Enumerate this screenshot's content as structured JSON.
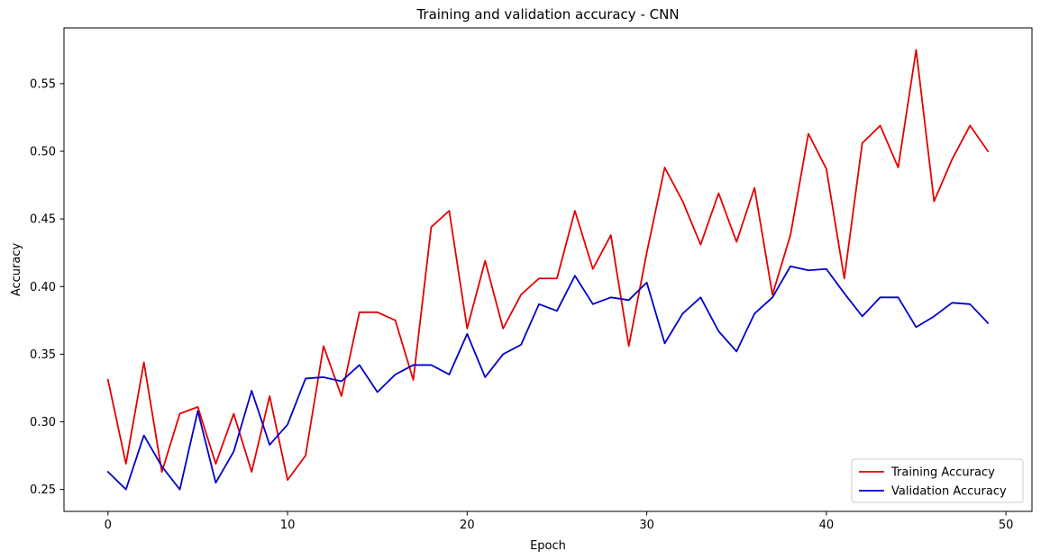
{
  "chart_data": {
    "type": "line",
    "title": "Training and validation accuracy - CNN",
    "xlabel": "Epoch",
    "ylabel": "Accuracy",
    "xlim": [
      -2.45,
      51.45
    ],
    "ylim": [
      0.2338,
      0.5912
    ],
    "xticks": [
      0,
      10,
      20,
      30,
      40,
      50
    ],
    "yticks": [
      0.25,
      0.3,
      0.35,
      0.4,
      0.45,
      0.5,
      0.55
    ],
    "ytick_labels": [
      "0.25",
      "0.30",
      "0.35",
      "0.40",
      "0.45",
      "0.50",
      "0.55"
    ],
    "xtick_labels": [
      "0",
      "10",
      "20",
      "30",
      "40",
      "50"
    ],
    "grid": false,
    "legend_position": "lower-right",
    "x": [
      0,
      1,
      2,
      3,
      4,
      5,
      6,
      7,
      8,
      9,
      10,
      11,
      12,
      13,
      14,
      15,
      16,
      17,
      18,
      19,
      20,
      21,
      22,
      23,
      24,
      25,
      26,
      27,
      28,
      29,
      30,
      31,
      32,
      33,
      34,
      35,
      36,
      37,
      38,
      39,
      40,
      41,
      42,
      43,
      44,
      45,
      46,
      47,
      48,
      49
    ],
    "series": [
      {
        "name": "Training Accuracy",
        "color": "#e50000",
        "values": [
          0.331,
          0.269,
          0.344,
          0.263,
          0.306,
          0.311,
          0.269,
          0.306,
          0.263,
          0.319,
          0.257,
          0.275,
          0.356,
          0.319,
          0.381,
          0.381,
          0.375,
          0.331,
          0.444,
          0.456,
          0.369,
          0.419,
          0.369,
          0.394,
          0.406,
          0.406,
          0.456,
          0.413,
          0.438,
          0.356,
          0.425,
          0.488,
          0.463,
          0.431,
          0.469,
          0.433,
          0.473,
          0.394,
          0.438,
          0.513,
          0.487,
          0.406,
          0.506,
          0.519,
          0.488,
          0.575,
          0.463,
          0.494,
          0.519,
          0.5
        ]
      },
      {
        "name": "Validation Accuracy",
        "color": "#0000cc",
        "values": [
          0.263,
          0.25,
          0.29,
          0.267,
          0.25,
          0.308,
          0.255,
          0.278,
          0.323,
          0.283,
          0.298,
          0.332,
          0.333,
          0.33,
          0.342,
          0.322,
          0.335,
          0.342,
          0.342,
          0.335,
          0.365,
          0.333,
          0.35,
          0.357,
          0.387,
          0.382,
          0.408,
          0.387,
          0.392,
          0.39,
          0.403,
          0.358,
          0.38,
          0.392,
          0.367,
          0.352,
          0.38,
          0.392,
          0.415,
          0.412,
          0.413,
          0.395,
          0.378,
          0.392,
          0.392,
          0.37,
          0.378,
          0.388,
          0.387,
          0.373
        ]
      }
    ]
  }
}
